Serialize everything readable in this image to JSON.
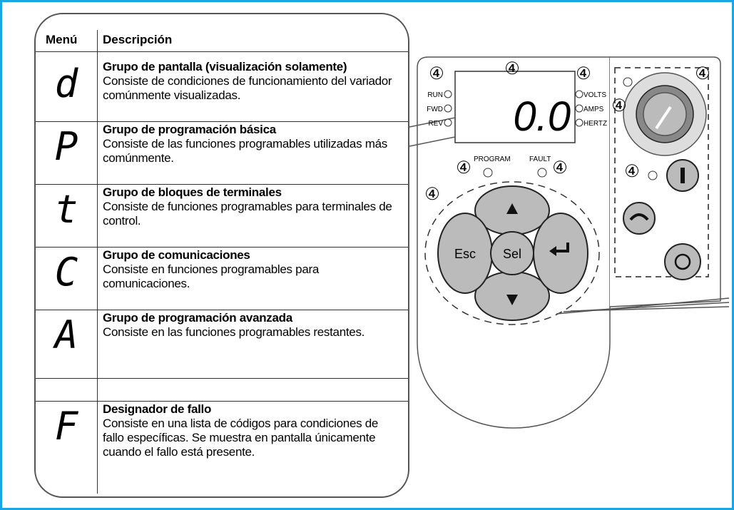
{
  "table": {
    "headers": [
      "Menú",
      "Descripción"
    ],
    "rows": [
      {
        "symbol": "d",
        "title": "Grupo de pantalla (visualización solamente)",
        "description": "Consiste de condiciones de funcionamiento del variador comúnmente visualizadas."
      },
      {
        "symbol": "P",
        "title": "Grupo de programación básica",
        "description": "Consiste de las funciones programables utilizadas más comúnmente."
      },
      {
        "symbol": "t",
        "title": "Grupo de bloques de terminales",
        "description": "Consiste de funciones programables para terminales de control."
      },
      {
        "symbol": "C",
        "title": "Grupo de comunicaciones",
        "description": "Consiste en funciones programables para comunicaciones."
      },
      {
        "symbol": "A",
        "title": "Grupo de programación avanzada",
        "description": "Consiste en las funciones programables restantes."
      },
      {
        "symbol": "F",
        "title": "Designador de fallo",
        "description": "Consiste en una lista de códigos para condiciones de fallo específicas. Se muestra en pantalla únicamente cuando el fallo está presente."
      }
    ]
  },
  "keypad": {
    "display": "0.0",
    "indicators_left": [
      "RUN",
      "FWD",
      "REV"
    ],
    "indicators_right": [
      "VOLTS",
      "AMPS",
      "HERTZ"
    ],
    "leds": [
      "PROGRAM",
      "FAULT"
    ],
    "buttons": [
      "Esc",
      "Sel"
    ],
    "callout": "④"
  }
}
